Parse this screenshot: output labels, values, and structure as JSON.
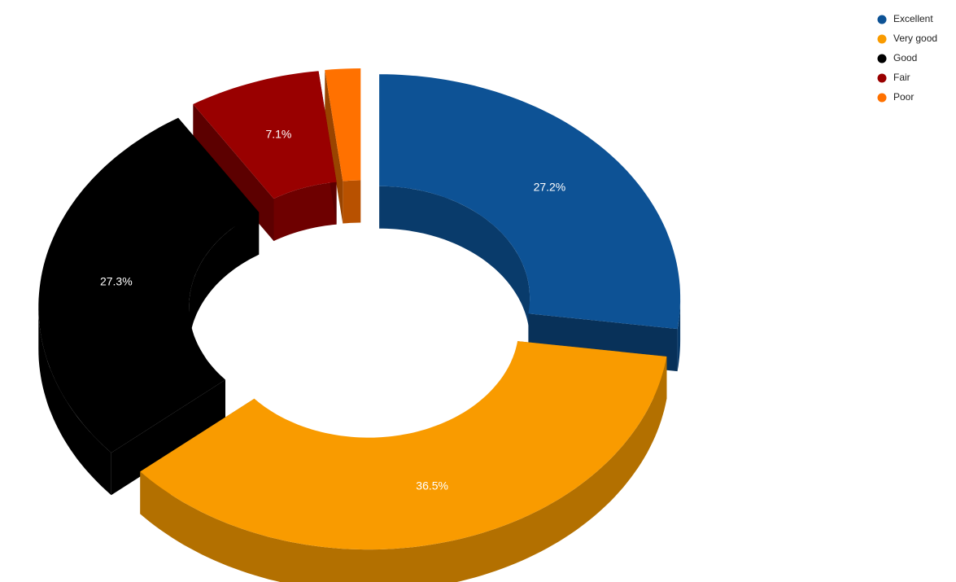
{
  "chart_data": {
    "type": "pie",
    "donut": true,
    "categories": [
      "Excellent",
      "Very good",
      "Good",
      "Fair",
      "Poor"
    ],
    "values": [
      27.2,
      36.5,
      27.3,
      7.1,
      1.9
    ],
    "value_labels": [
      "27.2%",
      "36.5%",
      "27.3%",
      "7.1%",
      null
    ],
    "colors": [
      "#0d5295",
      "#f99b00",
      "#000000",
      "#990000",
      "#ff7100"
    ],
    "legend": "top-right"
  }
}
